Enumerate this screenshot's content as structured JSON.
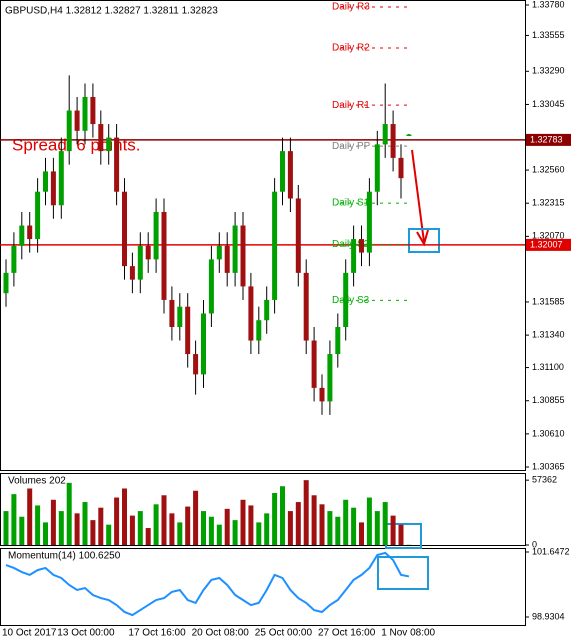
{
  "chart_data": [
    {
      "type": "candlestick",
      "title": "GBPUSD,H4 1.32812 1.32827 1.32811 1.32823",
      "annotation": "Spread: 6 points.",
      "categories": [
        "10 Oct 2017",
        null,
        null,
        null,
        null,
        null,
        null,
        "13 Oct 00:00",
        null,
        null,
        null,
        null,
        null,
        null,
        null,
        null,
        "17 Oct 16:00",
        null,
        null,
        null,
        null,
        null,
        null,
        null,
        "20 Oct 08:00",
        null,
        null,
        null,
        null,
        null,
        null,
        null,
        "25 Oct 00:00",
        null,
        null,
        null,
        null,
        null,
        null,
        null,
        "27 Oct 16:00",
        null,
        null,
        null,
        null,
        null,
        null,
        null,
        "1 Nov 08:00",
        null,
        null,
        null
      ],
      "open": [
        1.3165,
        1.318,
        1.32,
        1.3215,
        1.3205,
        1.324,
        1.3255,
        1.323,
        1.327,
        1.33,
        1.3285,
        1.331,
        1.329,
        1.327,
        1.328,
        1.324,
        1.3185,
        1.3175,
        1.32,
        1.319,
        1.3225,
        1.316,
        1.314,
        1.3155,
        1.312,
        1.3105,
        1.315,
        1.319,
        1.32,
        1.318,
        1.3215,
        1.317,
        1.313,
        1.3145,
        1.316,
        1.324,
        1.327,
        1.3235,
        1.318,
        1.313,
        1.3095,
        1.3085,
        1.312,
        1.314,
        1.318,
        1.3205,
        1.3195,
        1.324,
        1.3275,
        1.329,
        1.3265,
        1.32812
      ],
      "high": [
        1.319,
        1.321,
        1.3225,
        1.3225,
        1.325,
        1.3265,
        1.3265,
        1.328,
        1.3326,
        1.331,
        1.332,
        1.332,
        1.33,
        1.329,
        1.329,
        1.325,
        1.3195,
        1.321,
        1.321,
        1.3235,
        1.3235,
        1.317,
        1.3165,
        1.3165,
        1.313,
        1.316,
        1.32,
        1.321,
        1.321,
        1.3225,
        1.3225,
        1.318,
        1.3155,
        1.317,
        1.325,
        1.328,
        1.328,
        1.3245,
        1.319,
        1.314,
        1.3105,
        1.313,
        1.315,
        1.319,
        1.3215,
        1.3215,
        1.325,
        1.3285,
        1.332,
        1.33,
        1.3275,
        1.32827
      ],
      "low": [
        1.3155,
        1.317,
        1.319,
        1.3195,
        1.3195,
        1.323,
        1.322,
        1.322,
        1.326,
        1.3275,
        1.3275,
        1.328,
        1.326,
        1.326,
        1.323,
        1.3175,
        1.3165,
        1.3165,
        1.318,
        1.318,
        1.315,
        1.313,
        1.313,
        1.311,
        1.309,
        1.3095,
        1.314,
        1.318,
        1.317,
        1.317,
        1.316,
        1.312,
        1.312,
        1.3135,
        1.315,
        1.323,
        1.3225,
        1.317,
        1.312,
        1.3085,
        1.3075,
        1.3075,
        1.311,
        1.313,
        1.317,
        1.3185,
        1.3185,
        1.323,
        1.3265,
        1.3255,
        1.3235,
        1.32811
      ],
      "close": [
        1.318,
        1.32,
        1.3215,
        1.3205,
        1.324,
        1.3255,
        1.323,
        1.327,
        1.33,
        1.3285,
        1.331,
        1.329,
        1.327,
        1.328,
        1.324,
        1.3185,
        1.3175,
        1.32,
        1.319,
        1.3225,
        1.316,
        1.314,
        1.3155,
        1.312,
        1.3105,
        1.315,
        1.319,
        1.32,
        1.318,
        1.3215,
        1.317,
        1.313,
        1.3145,
        1.316,
        1.324,
        1.327,
        1.3235,
        1.318,
        1.313,
        1.3095,
        1.3085,
        1.312,
        1.314,
        1.318,
        1.3205,
        1.3195,
        1.324,
        1.3275,
        1.329,
        1.3265,
        1.325,
        1.32823
      ],
      "up_color": "#00a000",
      "down_color": "#a01010",
      "wick_color": "#000000",
      "ylim": [
        1.30343,
        1.33817
      ],
      "yticks": [
        {
          "value": 1.3378,
          "label": "1.33780"
        },
        1.33555,
        {
          "value": 1.3329,
          "label": "1.33290"
        },
        1.33045,
        {
          "value": 1.3256,
          "label": "1.32560"
        },
        1.32315,
        {
          "value": 1.3207,
          "label": "1.32070"
        },
        1.31585,
        {
          "value": 1.3134,
          "label": "1.31340"
        },
        {
          "value": 1.311,
          "label": "1.31100"
        },
        1.30855,
        {
          "value": 1.3061,
          "label": "1.30610"
        },
        1.30365
      ],
      "levels": [
        {
          "value": 1.32783,
          "color": "#8b0000"
        },
        {
          "value": 1.32007,
          "color": "#e00000"
        }
      ],
      "pivots": [
        {
          "name": "Daily R3",
          "value": 1.33765,
          "color": "#e00000"
        },
        {
          "name": "Daily R2",
          "value": 1.33462,
          "color": "#e00000"
        },
        {
          "name": "Daily R1",
          "value": 1.3304,
          "color": "#e00000"
        },
        {
          "name": "Daily PP",
          "value": 1.32737,
          "color": "#808080"
        },
        {
          "name": "Daily S1",
          "value": 1.32316,
          "color": "#00b000"
        },
        {
          "name": "Daily S2",
          "value": 1.32011,
          "color": "#00b000"
        },
        {
          "name": "Daily S3",
          "value": 1.31597,
          "color": "#00b000"
        }
      ]
    },
    {
      "type": "bar",
      "title": "Volumes 202",
      "values": [
        30000,
        45000,
        25000,
        50000,
        35000,
        20000,
        40000,
        30000,
        55000,
        28000,
        38000,
        22000,
        33000,
        18000,
        42000,
        50000,
        26000,
        30000,
        15000,
        36000,
        44000,
        28000,
        20000,
        34000,
        48000,
        30000,
        25000,
        18000,
        32000,
        22000,
        40000,
        35000,
        20000,
        28000,
        46000,
        52000,
        30000,
        38000,
        57362,
        44000,
        36000,
        30000,
        25000,
        40000,
        33000,
        20000,
        42000,
        30000,
        38000,
        26000,
        18000,
        202
      ],
      "ylim": [
        0,
        63700
      ],
      "yticks": [
        57362,
        0
      ]
    },
    {
      "type": "line",
      "title": "Momentum(14) 100.6250",
      "color": "#1e90ff",
      "values": [
        101.1,
        100.98,
        100.81,
        100.69,
        100.89,
        100.98,
        100.69,
        100.56,
        100.27,
        100.06,
        100.14,
        99.85,
        99.72,
        99.64,
        99.43,
        99.14,
        99.01,
        99.22,
        99.43,
        99.64,
        99.72,
        99.98,
        100.06,
        99.64,
        99.52,
        100.06,
        100.48,
        100.56,
        100.27,
        99.85,
        99.64,
        99.43,
        99.52,
        100.06,
        100.69,
        100.56,
        100.06,
        99.72,
        99.52,
        99.22,
        99.14,
        99.43,
        99.64,
        100.06,
        100.48,
        100.69,
        100.98,
        101.52,
        101.61,
        101.31,
        100.69,
        100.625
      ],
      "ylim": [
        98.596,
        101.814
      ],
      "yticks": [
        101.6472,
        98.9304
      ]
    }
  ]
}
